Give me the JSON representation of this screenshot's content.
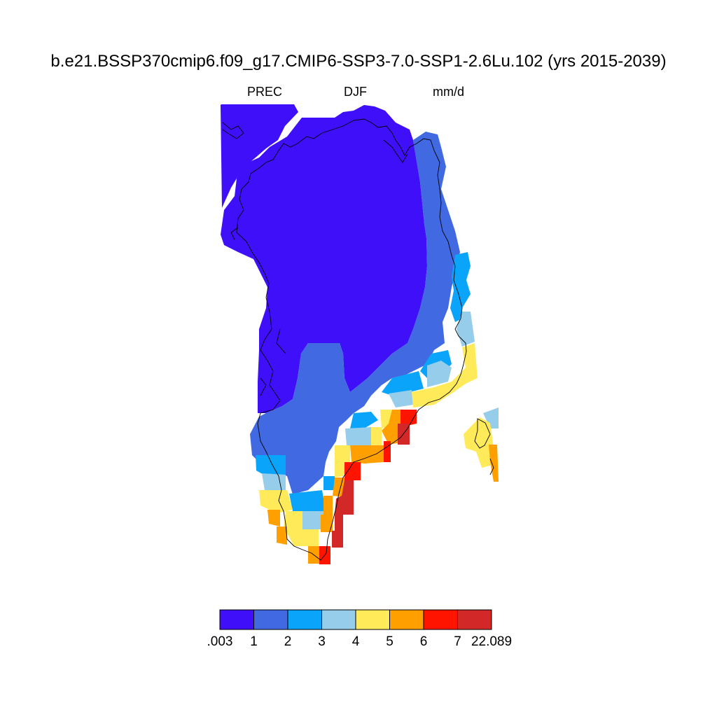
{
  "title": "b.e21.BSSP370cmip6.f09_g17.CMIP6-SSP3-7.0-SSP1-2.6Lu.102 (yrs 2015-2039)",
  "subtitle": {
    "variable": "PREC",
    "season": "DJF",
    "units": "mm/d"
  },
  "colorbar": {
    "colors": [
      "#3f0ffa",
      "#4169e1",
      "#0aa5fa",
      "#96cdeb",
      "#ffeb5a",
      "#ffa000",
      "#ff1400",
      "#d22828"
    ],
    "labels": [
      ".003",
      "1",
      "2",
      "3",
      "4",
      "5",
      "6",
      "7",
      "22.089"
    ]
  },
  "map": {
    "region": "Greenland",
    "field": "precipitation rate",
    "min": 0.003,
    "max": 22.089,
    "pattern": "values below 1 mm/d across the ice-sheet interior and north; rising to 1–4 mm/d along the east coast and 5–22 mm/d along the southeast and southern coast"
  }
}
